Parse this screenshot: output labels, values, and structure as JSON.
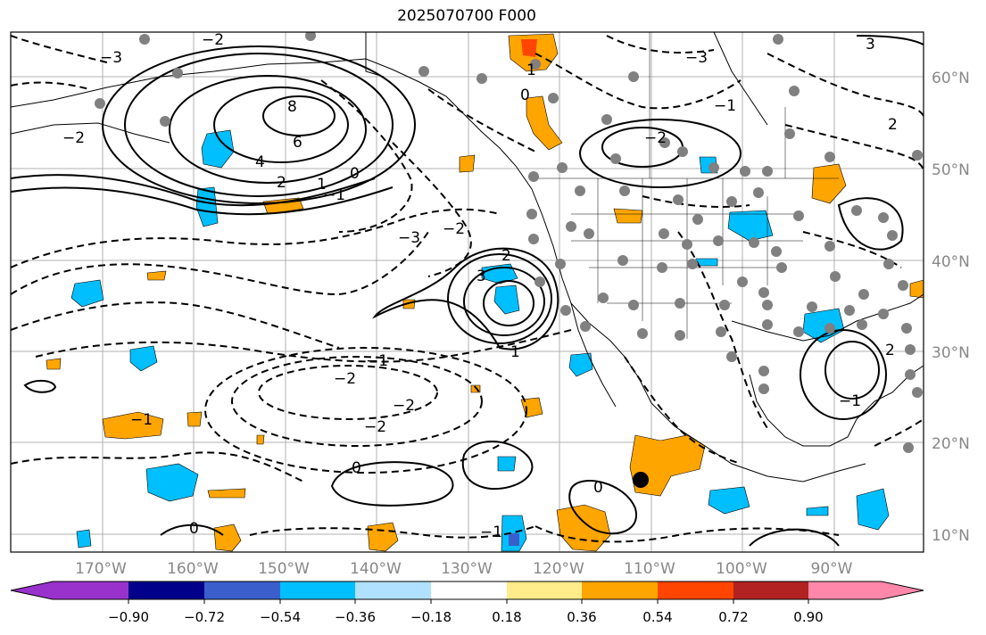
{
  "title": "2025070700 F000",
  "lat_labels": [
    "60°N",
    "50°N",
    "40°N",
    "30°N",
    "20°N",
    "10°N"
  ],
  "lon_labels": [
    "170°W",
    "160°W",
    "150°W",
    "140°W",
    "130°W",
    "120°W",
    "110°W",
    "100°W",
    "90°W"
  ],
  "colorbar": {
    "ticks": [
      "−0.90",
      "−0.72",
      "−0.54",
      "−0.36",
      "−0.18",
      "0.18",
      "0.36",
      "0.54",
      "0.72",
      "0.90"
    ],
    "colors": [
      "#9932CC",
      "#00008B",
      "#3A5FCD",
      "#00BFFF",
      "#B0E2FF",
      "#FFFFFF",
      "#FFEC8B",
      "#FFA500",
      "#FF4500",
      "#B22222",
      "#FF88AA"
    ]
  },
  "contour_labels": [
    "8",
    "6",
    "4",
    "2",
    "1",
    "0",
    "−1",
    "−2",
    "−3",
    "−1",
    "−2",
    "2",
    "3",
    "1",
    "−2",
    "−2",
    "−1",
    "0",
    "−3",
    "−2",
    "2",
    "−1",
    "0",
    "0",
    "−1",
    "3",
    "2",
    "1",
    "0",
    "−2",
    "−3",
    "−2",
    "−1"
  ],
  "colors": {
    "positive_anomaly": "#FFA500",
    "negative_anomaly": "#00BFFF",
    "contour": "#000000",
    "gridline": "#b0b0b0",
    "station": "#808080"
  }
}
